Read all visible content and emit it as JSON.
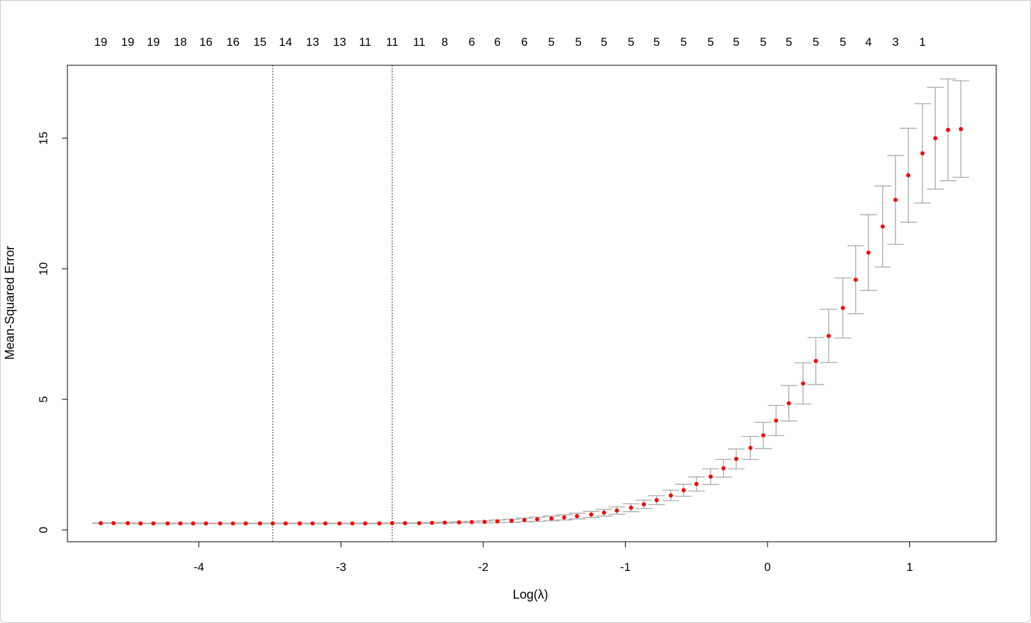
{
  "chart_data": {
    "type": "scatter",
    "xlabel": "Log(λ)",
    "ylabel": "Mean-Squared Error",
    "xlim": [
      -4.7,
      1.4
    ],
    "ylim": [
      0,
      16.9
    ],
    "x_ticks": [
      "-4",
      "-3",
      "-2",
      "-1",
      "0",
      "1"
    ],
    "x_tick_values": [
      -4,
      -3,
      -2,
      -1,
      0,
      1
    ],
    "y_ticks": [
      "0",
      "5",
      "10",
      "15"
    ],
    "y_tick_values": [
      0,
      5,
      10,
      15
    ],
    "top_axis_labels": [
      "19",
      "19",
      "19",
      "18",
      "16",
      "16",
      "15",
      "14",
      "13",
      "13",
      "11",
      "11",
      "11",
      "8",
      "6",
      "6",
      "6",
      "5",
      "5",
      "5",
      "5",
      "5",
      "5",
      "5",
      "5",
      "5",
      "5",
      "5",
      "5",
      "4",
      "3",
      "1"
    ],
    "top_axis_label_x": [
      -4.69,
      -4.5,
      -4.32,
      -4.13,
      -3.95,
      -3.76,
      -3.57,
      -3.39,
      -3.2,
      -3.01,
      -2.83,
      -2.64,
      -2.45,
      -2.27,
      -2.08,
      -1.9,
      -1.71,
      -1.52,
      -1.33,
      -1.15,
      -0.96,
      -0.78,
      -0.59,
      -0.4,
      -0.22,
      -0.03,
      0.15,
      0.34,
      0.53,
      0.71,
      0.9,
      1.09
    ],
    "vlines": [
      -3.48,
      -2.64
    ],
    "point_color": "#ff0000",
    "errorbar_color": "#aaaaaa",
    "series": [
      {
        "x": [
          -4.69,
          -4.6,
          -4.5,
          -4.41,
          -4.32,
          -4.22,
          -4.13,
          -4.04,
          -3.95,
          -3.85,
          -3.76,
          -3.67,
          -3.57,
          -3.48,
          -3.39,
          -3.29,
          -3.2,
          -3.11,
          -3.01,
          -2.92,
          -2.83,
          -2.73,
          -2.64,
          -2.55,
          -2.45,
          -2.36,
          -2.27,
          -2.17,
          -2.08,
          -1.99,
          -1.9,
          -1.8,
          -1.71,
          -1.62,
          -1.52,
          -1.43,
          -1.34,
          -1.24,
          -1.15,
          -1.06,
          -0.96,
          -0.87,
          -0.78,
          -0.68,
          -0.59,
          -0.5,
          -0.4,
          -0.31,
          -0.22,
          -0.12,
          -0.03,
          0.06,
          0.15,
          0.25,
          0.34,
          0.43,
          0.53,
          0.62,
          0.71,
          0.81,
          0.9,
          0.99,
          1.09,
          1.18,
          1.27,
          1.36
        ],
        "y": [
          0.26,
          0.26,
          0.26,
          0.25,
          0.25,
          0.25,
          0.25,
          0.25,
          0.25,
          0.25,
          0.25,
          0.25,
          0.25,
          0.25,
          0.25,
          0.25,
          0.25,
          0.25,
          0.25,
          0.25,
          0.25,
          0.25,
          0.26,
          0.26,
          0.26,
          0.27,
          0.28,
          0.29,
          0.3,
          0.31,
          0.33,
          0.35,
          0.38,
          0.41,
          0.44,
          0.48,
          0.53,
          0.59,
          0.66,
          0.74,
          0.85,
          0.98,
          1.14,
          1.32,
          1.52,
          1.76,
          2.04,
          2.36,
          2.72,
          3.14,
          3.62,
          4.19,
          4.85,
          5.61,
          6.47,
          7.43,
          8.5,
          9.58,
          10.62,
          11.62,
          12.64,
          13.58,
          14.42,
          15.0,
          15.32,
          15.35
        ],
        "err": [
          0.01,
          0.01,
          0.01,
          0.01,
          0.01,
          0.01,
          0.01,
          0.01,
          0.01,
          0.01,
          0.01,
          0.01,
          0.01,
          0.01,
          0.01,
          0.01,
          0.01,
          0.01,
          0.01,
          0.01,
          0.01,
          0.01,
          0.01,
          0.01,
          0.01,
          0.02,
          0.02,
          0.02,
          0.03,
          0.04,
          0.05,
          0.06,
          0.07,
          0.08,
          0.09,
          0.1,
          0.11,
          0.12,
          0.13,
          0.14,
          0.15,
          0.16,
          0.17,
          0.2,
          0.23,
          0.27,
          0.3,
          0.34,
          0.38,
          0.44,
          0.5,
          0.58,
          0.68,
          0.79,
          0.9,
          1.02,
          1.15,
          1.3,
          1.45,
          1.55,
          1.7,
          1.8,
          1.9,
          1.95,
          1.95,
          1.85
        ]
      }
    ]
  }
}
